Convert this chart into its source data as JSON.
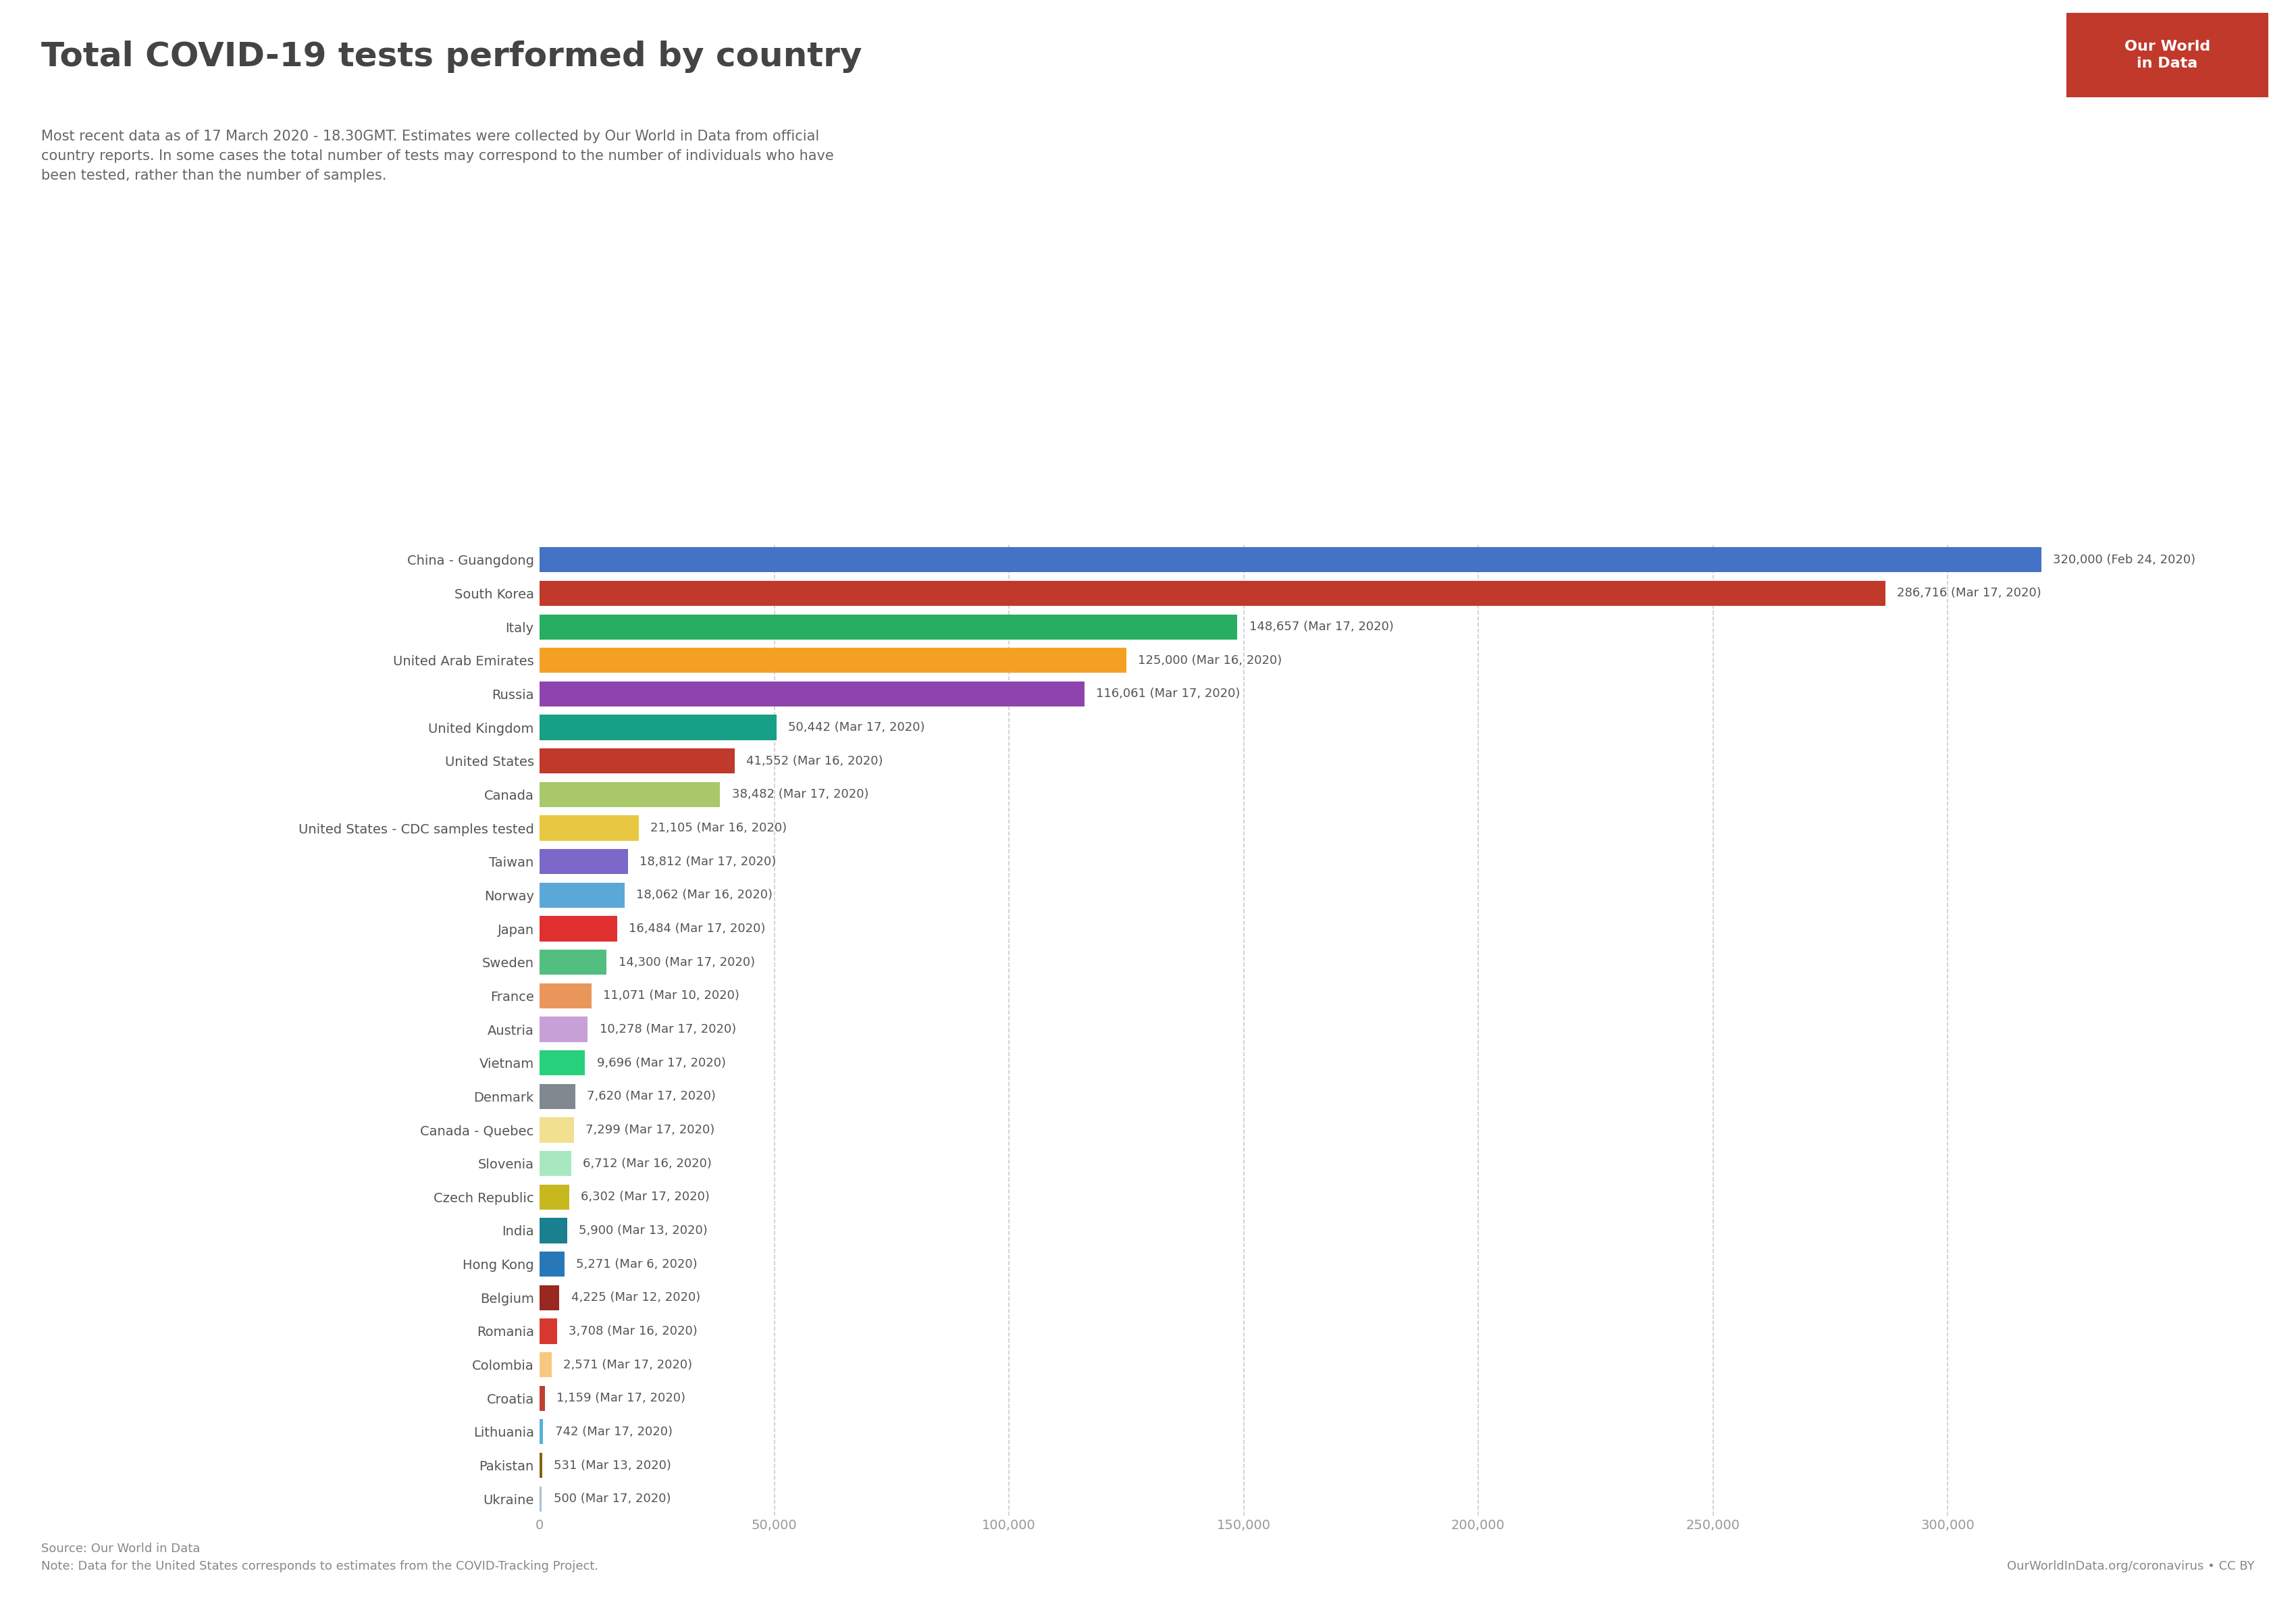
{
  "title": "Total COVID-19 tests performed by country",
  "subtitle": "Most recent data as of 17 March 2020 - 18.30GMT. Estimates were collected by Our World in Data from official\ncountry reports. In some cases the total number of tests may correspond to the number of individuals who have\nbeen tested, rather than the number of samples.",
  "source_left": "Source: Our World in Data\nNote: Data for the United States corresponds to estimates from the COVID-Tracking Project.",
  "source_right": "OurWorldInData.org/coronavirus • CC BY",
  "countries": [
    "China - Guangdong",
    "South Korea",
    "Italy",
    "United Arab Emirates",
    "Russia",
    "United Kingdom",
    "United States",
    "Canada",
    "United States - CDC samples tested",
    "Taiwan",
    "Norway",
    "Japan",
    "Sweden",
    "France",
    "Austria",
    "Vietnam",
    "Denmark",
    "Canada - Quebec",
    "Slovenia",
    "Czech Republic",
    "India",
    "Hong Kong",
    "Belgium",
    "Romania",
    "Colombia",
    "Croatia",
    "Lithuania",
    "Pakistan",
    "Ukraine"
  ],
  "values": [
    320000,
    286716,
    148657,
    125000,
    116061,
    50442,
    41552,
    38482,
    21105,
    18812,
    18062,
    16484,
    14300,
    11071,
    10278,
    9696,
    7620,
    7299,
    6712,
    6302,
    5900,
    5271,
    4225,
    3708,
    2571,
    1159,
    742,
    531,
    500
  ],
  "labels": [
    "320,000 (Feb 24, 2020)",
    "286,716 (Mar 17, 2020)",
    "148,657 (Mar 17, 2020)",
    "125,000 (Mar 16, 2020)",
    "116,061 (Mar 17, 2020)",
    "50,442 (Mar 17, 2020)",
    "41,552 (Mar 16, 2020)",
    "38,482 (Mar 17, 2020)",
    "21,105 (Mar 16, 2020)",
    "18,812 (Mar 17, 2020)",
    "18,062 (Mar 16, 2020)",
    "16,484 (Mar 17, 2020)",
    "14,300 (Mar 17, 2020)",
    "11,071 (Mar 10, 2020)",
    "10,278 (Mar 17, 2020)",
    "9,696 (Mar 17, 2020)",
    "7,620 (Mar 17, 2020)",
    "7,299 (Mar 17, 2020)",
    "6,712 (Mar 16, 2020)",
    "6,302 (Mar 17, 2020)",
    "5,900 (Mar 13, 2020)",
    "5,271 (Mar 6, 2020)",
    "4,225 (Mar 12, 2020)",
    "3,708 (Mar 16, 2020)",
    "2,571 (Mar 17, 2020)",
    "1,159 (Mar 17, 2020)",
    "742 (Mar 17, 2020)",
    "531 (Mar 13, 2020)",
    "500 (Mar 17, 2020)"
  ],
  "colors": [
    "#4472C4",
    "#C0392B",
    "#27AE60",
    "#F4A123",
    "#8E44AD",
    "#16A085",
    "#C0392B",
    "#A8C86A",
    "#E8C842",
    "#7B68C8",
    "#5BA8D8",
    "#E03030",
    "#52BE80",
    "#E8965A",
    "#C8A0D8",
    "#26D07C",
    "#808890",
    "#F0E090",
    "#A8E8C0",
    "#C8B820",
    "#1A7F8E",
    "#2878B8",
    "#982820",
    "#D83830",
    "#F8C880",
    "#C04030",
    "#58B0D8",
    "#886010",
    "#A8C0D8"
  ],
  "xlim": [
    0,
    340000
  ],
  "xticks": [
    0,
    50000,
    100000,
    150000,
    200000,
    250000,
    300000
  ],
  "xtick_labels": [
    "0",
    "50,000",
    "100,000",
    "150,000",
    "200,000",
    "250,000",
    "300,000"
  ],
  "background_color": "#FFFFFF",
  "logo_bg": "#C0392B",
  "logo_text": "Our World\nin Data",
  "bar_height": 0.75,
  "title_fontsize": 36,
  "subtitle_fontsize": 15,
  "ytick_fontsize": 14,
  "xtick_fontsize": 14,
  "label_fontsize": 13,
  "footer_fontsize": 13
}
